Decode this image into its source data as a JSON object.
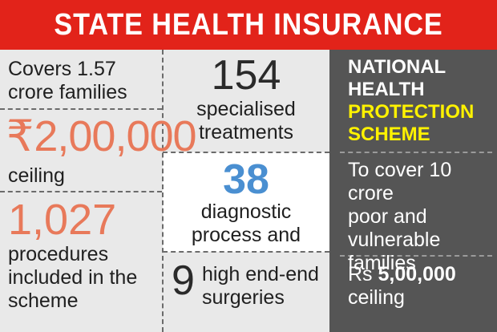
{
  "banner": {
    "title": "STATE HEALTH INSURANCE"
  },
  "colors": {
    "banner_red": "#e2231a",
    "orange": "#e8795a",
    "blue": "#4a8fd1",
    "yellow": "#fff200",
    "dark_panel": "#555555",
    "light_panel": "#e9e9e9"
  },
  "left": {
    "families_line1": "Covers 1.57",
    "families_line2": "crore families",
    "rupee_symbol": "₹",
    "ceiling_value": "2,00,000",
    "ceiling_label": "ceiling",
    "procedures_value": "1,027",
    "procedures_line1": "procedures",
    "procedures_line2": "included in the",
    "procedures_line3": "scheme"
  },
  "middle": {
    "treatments_value": "154",
    "treatments_line1": "specialised",
    "treatments_line2": "treatments",
    "diagnostic_value": "38",
    "diagnostic_line1": "diagnostic",
    "diagnostic_line2": "process and",
    "surgeries_value": "9",
    "surgeries_line1": "high end-end",
    "surgeries_line2": "surgeries"
  },
  "right": {
    "scheme_line1": "NATIONAL",
    "scheme_line2": "HEALTH",
    "scheme_line3": "PROTECTION",
    "scheme_line4": "SCHEME",
    "cover_line1": "To cover 10 crore",
    "cover_line2": "poor and",
    "cover_line3": "vulnerable",
    "cover_line4": "families",
    "ceiling_prefix": "Rs ",
    "ceiling_value": "5,00,000",
    "ceiling_label": "ceiling"
  }
}
